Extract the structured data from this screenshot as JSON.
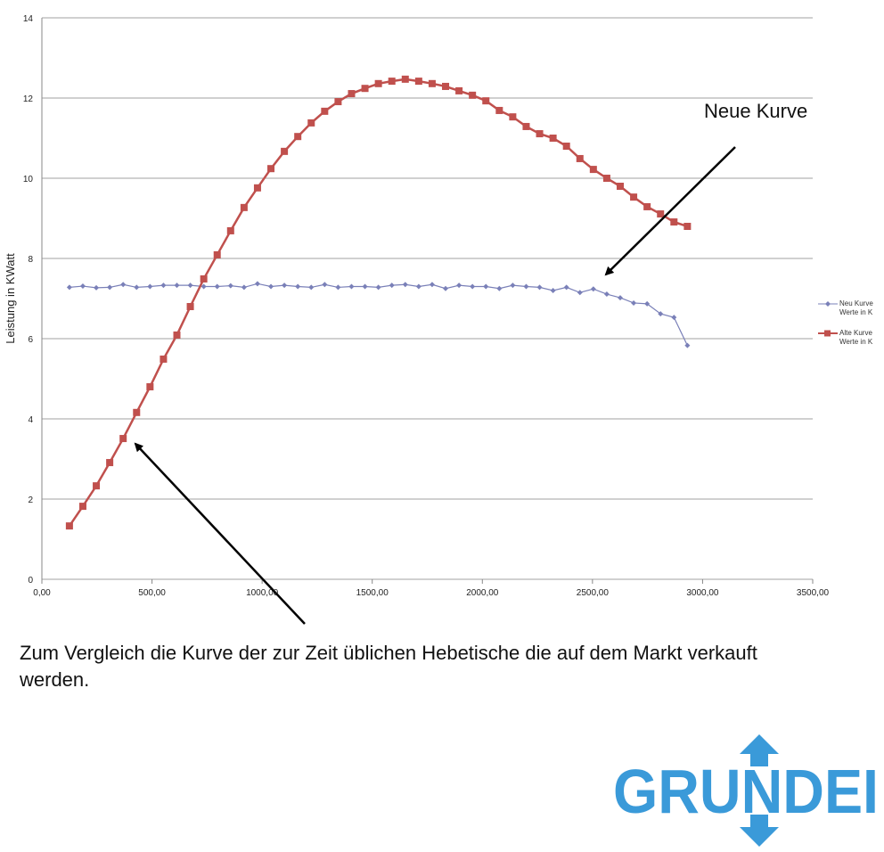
{
  "chart_data": {
    "type": "line",
    "ylabel": "Leistung in KWatt",
    "x": [
      125,
      186,
      247,
      308,
      369,
      430,
      491,
      552,
      613,
      674,
      735,
      796,
      857,
      918,
      979,
      1040,
      1101,
      1162,
      1223,
      1284,
      1345,
      1406,
      1467,
      1528,
      1589,
      1650,
      1711,
      1772,
      1833,
      1894,
      1955,
      2016,
      2077,
      2138,
      2199,
      2260,
      2321,
      2382,
      2443,
      2504,
      2565,
      2626,
      2687,
      2748,
      2809,
      2870,
      2931
    ],
    "series": [
      {
        "name": "Neu Kurve Werte in K",
        "color": "#7a80b8",
        "marker": "diamond",
        "values": [
          7.28,
          7.31,
          7.27,
          7.28,
          7.35,
          7.28,
          7.3,
          7.33,
          7.33,
          7.33,
          7.3,
          7.3,
          7.32,
          7.28,
          7.37,
          7.3,
          7.33,
          7.3,
          7.28,
          7.35,
          7.28,
          7.3,
          7.3,
          7.28,
          7.33,
          7.35,
          7.3,
          7.35,
          7.25,
          7.33,
          7.3,
          7.3,
          7.25,
          7.33,
          7.3,
          7.28,
          7.2,
          7.28,
          7.15,
          7.24,
          7.11,
          7.02,
          6.89,
          6.87,
          6.62,
          6.53,
          5.83
        ]
      },
      {
        "name": "Alte Kurve Werte in K",
        "color": "#c0504d",
        "marker": "square",
        "values": [
          1.33,
          1.82,
          2.33,
          2.91,
          3.51,
          4.16,
          4.8,
          5.49,
          6.09,
          6.8,
          7.49,
          8.09,
          8.69,
          9.27,
          9.76,
          10.24,
          10.67,
          11.04,
          11.38,
          11.67,
          11.91,
          12.11,
          12.24,
          12.36,
          12.42,
          12.47,
          12.42,
          12.36,
          12.29,
          12.18,
          12.07,
          11.93,
          11.69,
          11.53,
          11.29,
          11.11,
          11.0,
          10.8,
          10.49,
          10.22,
          10.0,
          9.8,
          9.53,
          9.29,
          9.11,
          8.91,
          8.8
        ]
      }
    ],
    "xlim": [
      0,
      3500
    ],
    "xticks": [
      {
        "value": 0,
        "label": "0,00"
      },
      {
        "value": 500,
        "label": "500,00"
      },
      {
        "value": 1000,
        "label": "1000,00"
      },
      {
        "value": 1500,
        "label": "1500,00"
      },
      {
        "value": 2000,
        "label": "2000,00"
      },
      {
        "value": 2500,
        "label": "2500,00"
      },
      {
        "value": 3000,
        "label": "3000,00"
      },
      {
        "value": 3500,
        "label": "3500,00"
      }
    ],
    "ylim": [
      0,
      14
    ],
    "yticks": [
      0,
      2,
      4,
      6,
      8,
      10,
      12,
      14
    ],
    "grid": true,
    "legend": "right",
    "annotations": [
      "Neue Kurve",
      "Zum Vergleich die Kurve der zur Zeit üblichen Hebetische die auf dem Markt verkauft werden."
    ]
  },
  "logo": "GRUNDEI"
}
